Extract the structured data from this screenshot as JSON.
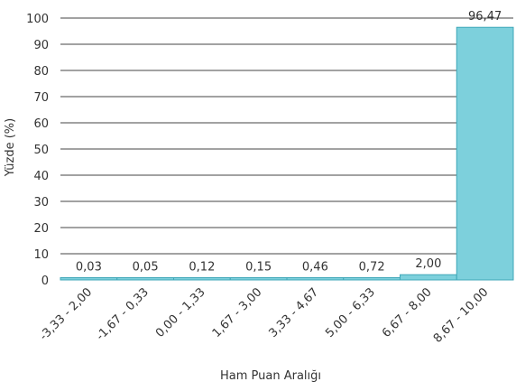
{
  "chart_data": {
    "type": "bar",
    "categories": [
      "-3,33 - 2,00",
      "-1,67 - 0,33",
      "0,00 - 1,33",
      "1,67 - 3,00",
      "3,33 - 4,67",
      "5,00 - 6,33",
      "6,67 - 8,00",
      "8,67 - 10,00"
    ],
    "values": [
      0.03,
      0.05,
      0.12,
      0.15,
      0.46,
      0.72,
      2.0,
      96.47
    ],
    "value_labels": [
      "0,03",
      "0,05",
      "0,12",
      "0,15",
      "0,46",
      "0,72",
      "2,00",
      "96,47"
    ],
    "xlabel": "Ham Puan Aralığı",
    "ylabel": "Yüzde (%)",
    "ylim": [
      0,
      100
    ],
    "yticks": [
      0,
      10,
      20,
      30,
      40,
      50,
      60,
      70,
      80,
      90,
      100
    ],
    "grid": true,
    "colors": {
      "bar_fill": "#7dd0dc",
      "bar_stroke": "#3fa7b8",
      "gridline": "#444444",
      "text": "#333333"
    }
  }
}
